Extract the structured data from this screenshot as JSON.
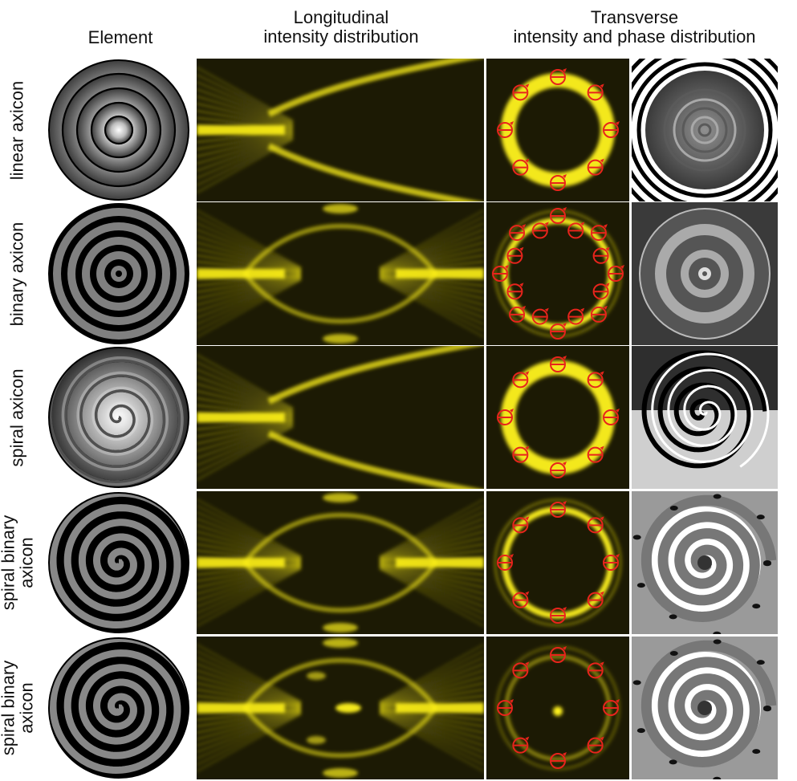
{
  "headers": {
    "element": "Element",
    "longitudinal_line1": "Longitudinal",
    "longitudinal_line2": "intensity distribution",
    "transverse_line1": "Transverse",
    "transverse_line2": "intensity and phase distribution"
  },
  "rows": [
    {
      "label_line1": "linear axicon",
      "label_line2": "",
      "element": "linear-gradient-rings",
      "long": "one-sided",
      "ring": "thick",
      "n_markers": 8,
      "center_spot": false,
      "phase": "rings"
    },
    {
      "label_line1": "binary axicon",
      "label_line2": "",
      "element": "binary-rings",
      "long": "symmetric",
      "ring": "thin",
      "n_markers": 16,
      "center_spot": false,
      "phase": "binary-rings"
    },
    {
      "label_line1": "spiral axicon",
      "label_line2": "",
      "element": "spiral-gradient",
      "long": "one-sided",
      "ring": "thick",
      "n_markers": 8,
      "center_spot": false,
      "phase": "spiral"
    },
    {
      "label_line1": "spiral binary",
      "label_line2": "axicon",
      "element": "spiral-binary",
      "long": "symmetric",
      "ring": "thin",
      "n_markers": 8,
      "center_spot": false,
      "phase": "spiral-binary"
    },
    {
      "label_line1": "spiral binary",
      "label_line2": "axicon",
      "element": "spiral-binary",
      "long": "symmetric-spots",
      "ring": "faint",
      "n_markers": 8,
      "center_spot": true,
      "phase": "spiral-binary"
    }
  ],
  "colors": {
    "dark_bg": "#1c1a04",
    "yellow": "#fff21a",
    "marker": "#e8241c"
  }
}
